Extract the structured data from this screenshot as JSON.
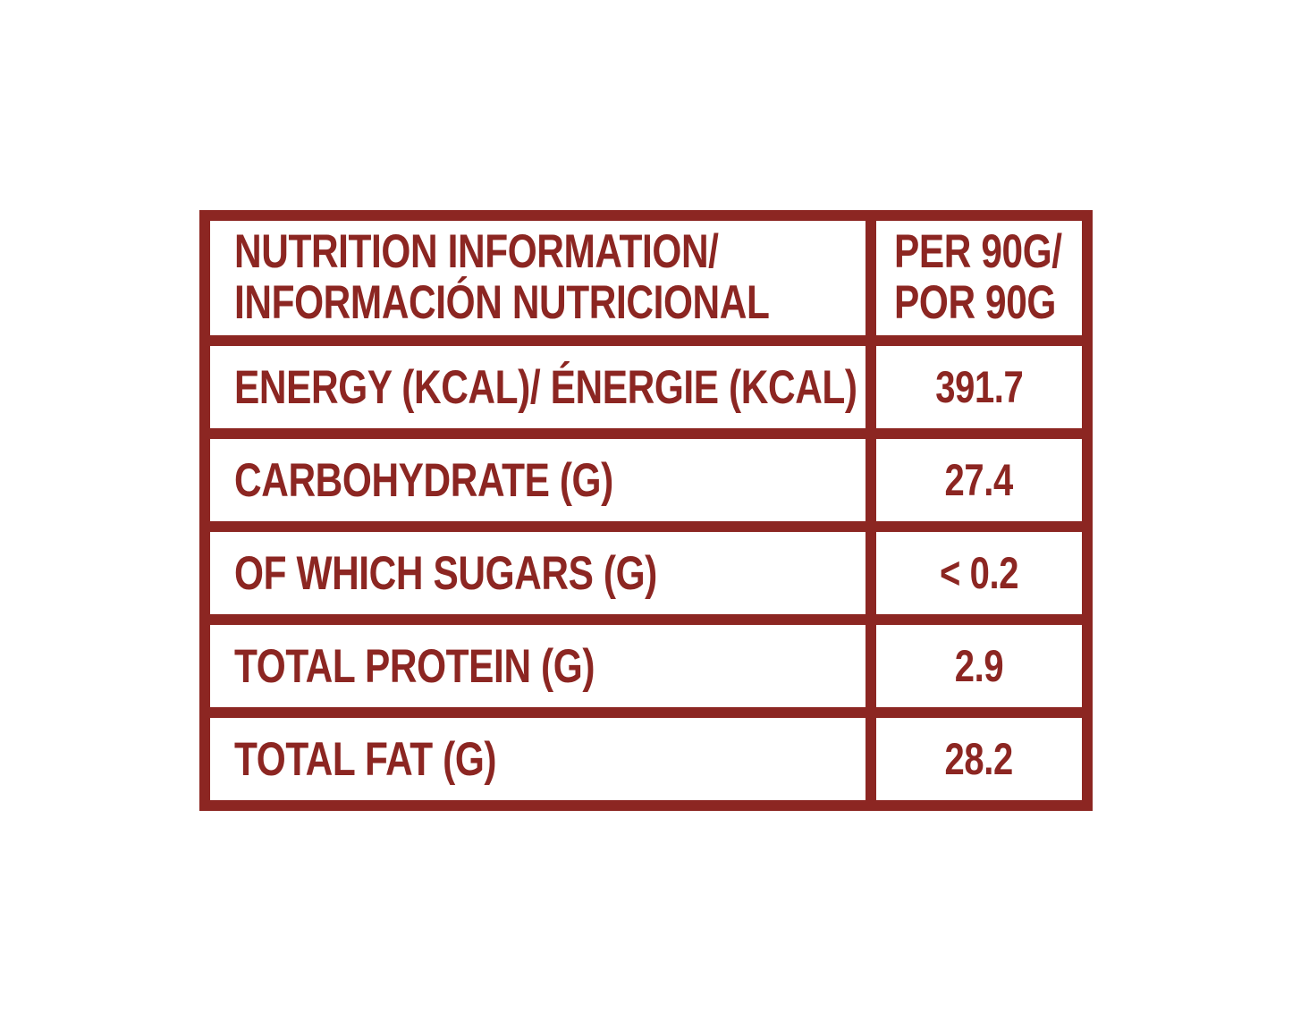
{
  "table": {
    "accent_color": "#8c2622",
    "background_color": "#ffffff",
    "header": {
      "title_line1": "NUTRITION INFORMATION/",
      "title_line2": "INFORMACIÓN NUTRICIONAL",
      "unit_line1": "PER 90G/",
      "unit_line2": "POR 90G"
    },
    "rows": [
      {
        "label": "ENERGY (KCAL)/ ÉNERGIE (KCAL)",
        "value": "391.7"
      },
      {
        "label": "CARBOHYDRATE (G)",
        "value": "27.4"
      },
      {
        "label": "OF WHICH SUGARS (G)",
        "value": "< 0.2"
      },
      {
        "label": "TOTAL PROTEIN (G)",
        "value": "2.9"
      },
      {
        "label": "TOTAL FAT (G)",
        "value": "28.2"
      }
    ]
  }
}
